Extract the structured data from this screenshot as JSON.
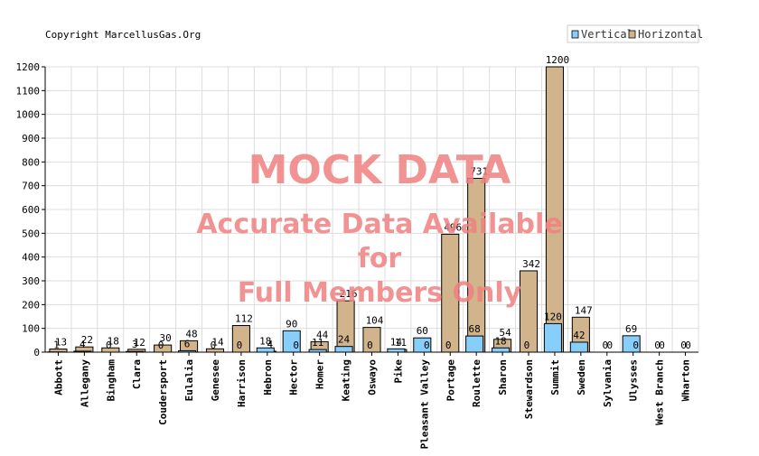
{
  "copyright": "Copyright MarcellusGas.Org",
  "watermark": {
    "line1": "MOCK DATA",
    "line2": "Accurate Data Available",
    "line3": "for",
    "line4": "Full Members Only",
    "color": "#f08080"
  },
  "chart_data": {
    "type": "bar",
    "title": "",
    "xlabel": "",
    "ylabel": "",
    "ylim": [
      0,
      1200
    ],
    "yticks": [
      0,
      100,
      200,
      300,
      400,
      500,
      600,
      700,
      800,
      900,
      1000,
      1100,
      1200
    ],
    "grid": true,
    "legend_position": "top-right",
    "categories": [
      "Abbott",
      "Allegany",
      "Bingham",
      "Clara",
      "Coudersport",
      "Eulalia",
      "Genesee",
      "Harrison",
      "Hebron",
      "Hector",
      "Homer",
      "Keating",
      "Oswayo",
      "Pike",
      "Pleasant Valley",
      "Portage",
      "Roulette",
      "Sharon",
      "Stewardson",
      "Summit",
      "Sweden",
      "Sylvania",
      "Ulysses",
      "West Branch",
      "Wharton"
    ],
    "series": [
      {
        "name": "Vertical",
        "color": "#87cefa",
        "values": [
          1,
          4,
          0,
          3,
          0,
          6,
          0,
          0,
          18,
          90,
          11,
          24,
          0,
          14,
          60,
          0,
          68,
          18,
          0,
          120,
          42,
          0,
          69,
          0,
          0
        ]
      },
      {
        "name": "Horizontal",
        "color": "#d2b48c",
        "values": [
          13,
          22,
          18,
          12,
          30,
          48,
          14,
          112,
          4,
          0,
          44,
          216,
          104,
          11,
          0,
          496,
          731,
          54,
          342,
          1200,
          147,
          0,
          0,
          0,
          0
        ]
      }
    ]
  }
}
